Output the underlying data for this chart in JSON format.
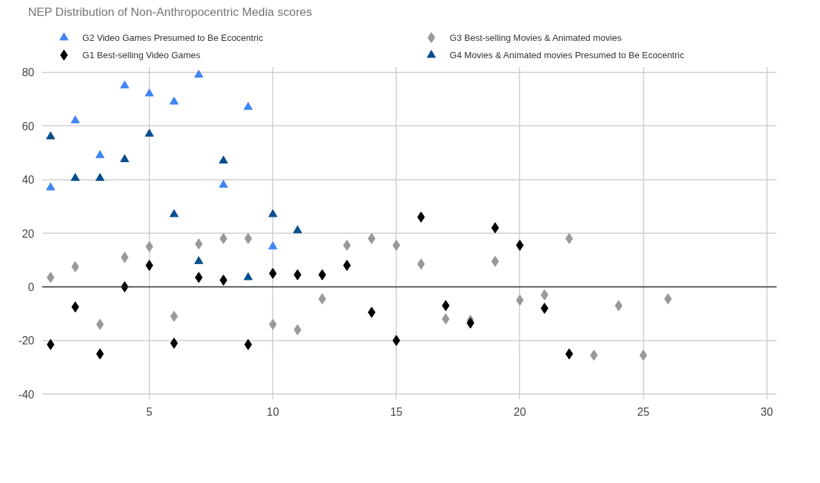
{
  "chart_data": {
    "type": "scatter",
    "title": "NEP Distribution of Non-Anthropocentric Media scores",
    "series": [
      {
        "name": "G2 Video Games Presumed to Be Ecocentric",
        "color": "#4285f4",
        "marker": "triangle",
        "x": [
          1,
          2,
          3,
          4,
          5,
          6,
          7,
          8,
          9,
          10
        ],
        "values": [
          37,
          62,
          49,
          75,
          72,
          69,
          79,
          38,
          67,
          15
        ]
      },
      {
        "name": "G3 Best-selling Movies & Animated movies",
        "color": "#999999",
        "marker": "diamond",
        "x": [
          1,
          2,
          3,
          4,
          5,
          6,
          7,
          8,
          9,
          10,
          11,
          12,
          13,
          14,
          15,
          16,
          17,
          18,
          19,
          20,
          21,
          22,
          23,
          24,
          25,
          26
        ],
        "values": [
          3.5,
          7.5,
          -14,
          11,
          15,
          -11,
          16,
          18,
          18,
          -14,
          -16,
          -4.5,
          15.5,
          18,
          15.5,
          8.5,
          -12,
          -12.5,
          9.5,
          -5,
          -3,
          18,
          -25.5,
          -7,
          -25.5,
          -4.5
        ]
      },
      {
        "name": "G1 Best-selling Video Games",
        "color": "#000000",
        "marker": "diamond",
        "x": [
          1,
          2,
          3,
          4,
          5,
          6,
          7,
          8,
          9,
          10,
          11,
          12,
          13,
          14,
          15,
          16,
          17,
          18,
          19,
          20,
          21,
          22
        ],
        "values": [
          -21.5,
          -7.5,
          -25,
          0,
          8,
          -21,
          3.5,
          2.5,
          -21.5,
          5,
          4.5,
          4.5,
          8,
          -9.5,
          -20,
          26,
          -7,
          -13.5,
          22,
          15.5,
          -8,
          -25
        ]
      },
      {
        "name": "G4 Movies & Animated movies Presumed to Be Ecocentric",
        "color": "#0b4f8f",
        "marker": "triangle",
        "x": [
          1,
          2,
          3,
          4,
          5,
          6,
          7,
          8,
          9,
          10,
          11
        ],
        "values": [
          56,
          40.5,
          40.5,
          47.5,
          57,
          27,
          9.5,
          47,
          3.5,
          27,
          21
        ]
      }
    ],
    "xlim": [
      0.65,
      30.4
    ],
    "xticks": [
      5,
      10,
      15,
      20,
      25,
      30
    ],
    "ylim": [
      -42,
      82
    ],
    "yticks": [
      -40,
      -20,
      0,
      20,
      40,
      60,
      80
    ],
    "ref_lines": [
      {
        "axis": "y",
        "value": 0,
        "color": "#333333"
      }
    ],
    "grid": true,
    "legend": "top"
  }
}
